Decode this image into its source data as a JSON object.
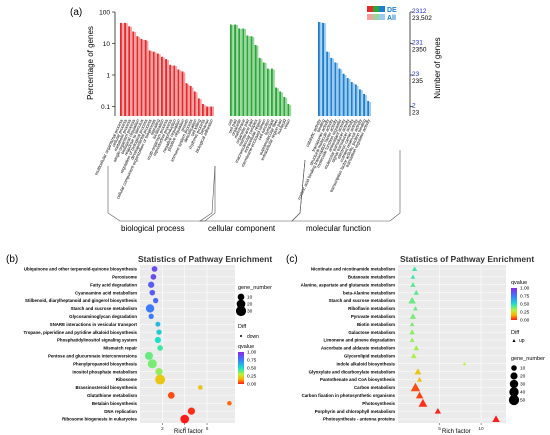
{
  "chart_data": [
    {
      "panel": "(a)",
      "type": "bar",
      "ylabel": "Percentage of genes",
      "ylabel2": "Number of genes",
      "yscale": "log",
      "yticks": [
        "100",
        "10",
        "1",
        "0.1"
      ],
      "ylim": [
        0.05,
        100
      ],
      "right_ticks": [
        {
          "value": "2312",
          "sub": "23,502"
        },
        {
          "value": "231",
          "sub": "2350"
        },
        {
          "value": "23",
          "sub": "235"
        },
        {
          "value": "2",
          "sub": "23"
        }
      ],
      "legend": [
        {
          "label": "DE",
          "colors": [
            "#e8292b",
            "#2aa837",
            "#1e7fd0"
          ]
        },
        {
          "label": "All",
          "colors": [
            "#f4a0a0",
            "#9ad59e",
            "#9ccbf0"
          ]
        }
      ],
      "group_labels": [
        "biological process",
        "cellular component",
        "molecular function"
      ],
      "groups": [
        {
          "name": "biological process",
          "de_color": "#e8292b",
          "all_color": "#f4a0a0",
          "categories": [
            "multicellular organismal process",
            "cellular process",
            "metabolic process",
            "single-organism process",
            "biological regulation",
            "response to stimulus",
            "regulation of biological process",
            "developmental process",
            "cellular component organization or biogenesis",
            "signaling",
            "localization",
            "multi-organism process",
            "reproductive process",
            "reproduction",
            "negative regulation",
            "positive regulation",
            "growth",
            "immune system process",
            "detoxification",
            "cell killing",
            "rhythmic process",
            "behavior",
            "biological adhesion"
          ],
          "values": [
            45,
            45,
            35,
            24,
            17,
            14,
            13,
            6,
            5.5,
            4.8,
            3.8,
            3.2,
            2.1,
            2.0,
            1.5,
            1.3,
            0.55,
            0.45,
            0.3,
            0.18,
            0.12,
            0.1,
            0.1
          ],
          "all_values": [
            44,
            44,
            34,
            23,
            16,
            13,
            12,
            5.8,
            5.2,
            4.6,
            3.6,
            3.0,
            2.0,
            1.9,
            1.4,
            1.2,
            0.5,
            0.4,
            0.28,
            0.17,
            0.11,
            0.1,
            0.1
          ]
        },
        {
          "name": "cellular component",
          "de_color": "#2aa837",
          "all_color": "#9ad59e",
          "categories": [
            "cell",
            "cell part",
            "organelle",
            "membrane",
            "organelle part",
            "membrane part",
            "macromolecular complex",
            "extracellular region",
            "membrane-enclosed lumen",
            "cell junction",
            "symplast",
            "supramolecular fiber",
            "extracellular region part",
            "nucleoid",
            "virion"
          ],
          "values": [
            40,
            40,
            30,
            30,
            18,
            17,
            9,
            3.5,
            2.5,
            1.6,
            1.6,
            0.4,
            0.3,
            0.2,
            0.12
          ],
          "all_values": [
            39,
            39,
            29,
            29,
            17,
            16,
            8.5,
            3.3,
            2.4,
            1.5,
            1.5,
            0.38,
            0.28,
            0.19,
            0.11
          ]
        },
        {
          "name": "molecular function",
          "de_color": "#1e7fd0",
          "all_color": "#9ccbf0",
          "categories": [
            "catalytic activity",
            "binding",
            "transporter activity",
            "structural molecule activity",
            "nucleic acid binding transcription factor activity",
            "molecular function regulator",
            "antioxidant activity",
            "molecular transducer activity",
            "signal transducer activity",
            "electron carrier activity",
            "nutrient reservoir activity",
            "transcription factor activity, protein binding",
            "translation regulator activity"
          ],
          "values": [
            48,
            45,
            5.5,
            3.5,
            2.5,
            1.6,
            1.1,
            0.8,
            0.6,
            0.5,
            0.35,
            0.25,
            0.15
          ],
          "all_values": [
            47,
            44,
            5.3,
            3.3,
            2.4,
            1.5,
            1.0,
            0.75,
            0.55,
            0.45,
            0.33,
            0.23,
            0.14
          ]
        }
      ]
    },
    {
      "panel": "(b)",
      "type": "scatter",
      "title": "Statistics of Pathway Enrichment",
      "xlabel": "Rich factor",
      "xlim": [
        0,
        8.5
      ],
      "xticks": [
        2,
        4,
        6
      ],
      "size_legend_title": "gene_number",
      "size_legend": [
        "10",
        "20",
        "30"
      ],
      "shape_legend_title": "Diff",
      "shape_legend": [
        "down"
      ],
      "color_legend_title": "qvalue",
      "color_ticks": [
        "1.00",
        "0.75",
        "0.50",
        "0.25",
        "0.00"
      ],
      "pathways": [
        "Ubiquinone and other terpenoid-quinone biosynthesis",
        "Peroxisome",
        "Fatty acid degradation",
        "Cyanoamino acid metabolism",
        "Stilbenoid, diarylheptanoid and gingerol biosynthesis",
        "Starch and sucrose metabolism",
        "Glycosaminoglycan degradation",
        "SNARE interactions in vesicular transport",
        "Tropane, piperidine and pyridine alkaloid biosynthesis",
        "Phosphatidylinositol signaling system",
        "Mismatch repair",
        "Pentose and glucuronate interconversions",
        "Phenylpropanoid biosynthesis",
        "Inositol phosphate metabolism",
        "Ribosome",
        "Brassinosteroid biosynthesis",
        "Glutathione metabolism",
        "Betalain biosynthesis",
        "DNA replication",
        "Ribosome biogenesis in eukaryotes"
      ],
      "x": [
        1.3,
        1.2,
        1.0,
        1.1,
        1.4,
        0.9,
        1.0,
        1.6,
        1.7,
        1.6,
        1.8,
        0.8,
        1.1,
        1.7,
        1.8,
        5.4,
        2.8,
        8.0,
        4.6,
        4.0
      ],
      "gene_number": [
        6,
        6,
        8,
        6,
        5,
        18,
        5,
        4,
        5,
        8,
        6,
        16,
        22,
        12,
        28,
        3,
        10,
        3,
        12,
        20
      ],
      "qvalue": [
        0.9,
        0.9,
        0.85,
        0.85,
        0.8,
        0.75,
        0.75,
        0.6,
        0.55,
        0.5,
        0.45,
        0.4,
        0.38,
        0.35,
        0.2,
        0.2,
        0.05,
        0.08,
        0.02,
        0.0
      ]
    },
    {
      "panel": "(c)",
      "type": "scatter",
      "title": "Statistics of Pathway Enrichment",
      "xlabel": "Rich factor",
      "xlim": [
        0,
        13
      ],
      "xticks": [
        5,
        10
      ],
      "color_legend_title": "qvalue",
      "color_ticks": [
        "1.00",
        "0.75",
        "0.50",
        "0.25",
        "0.00"
      ],
      "shape_legend_title": "Diff",
      "shape_legend": [
        "up"
      ],
      "size_legend_title": "gene_number",
      "size_legend": [
        "10",
        "20",
        "30",
        "40",
        "50"
      ],
      "pathways": [
        "Nicotinate and nicotinamide metabolism",
        "Butanoate metabolism",
        "Alanine, aspartate and glutamate metabolism",
        "beta-Alanine metabolism",
        "Starch and sucrose metabolism",
        "Riboflavin metabolism",
        "Pyruvate metabolism",
        "Biotin metabolism",
        "Galactose metabolism",
        "Limonene and pinene degradation",
        "Ascorbate and aldarate metabolism",
        "Glycerolipid metabolism",
        "Indole alkaloid biosynthesis",
        "Glyoxylate and dicarboxylate metabolism",
        "Pantothenate and CoA biosynthesis",
        "Carbon metabolism",
        "Carbon fixation in photosynthetic organisms",
        "Photosynthesis",
        "Porphyrin and chlorophyll metabolism",
        "Photosynthesis - antenna proteins"
      ],
      "x": [
        2.0,
        1.8,
        1.8,
        2.2,
        1.7,
        2.1,
        1.8,
        1.7,
        1.7,
        1.7,
        2.2,
        1.9,
        8.0,
        2.4,
        2.6,
        2.1,
        2.6,
        3.0,
        4.8,
        11.8
      ],
      "gene_number": [
        8,
        6,
        8,
        8,
        22,
        6,
        14,
        6,
        10,
        6,
        10,
        10,
        2,
        18,
        8,
        40,
        22,
        34,
        14,
        22
      ],
      "qvalue": [
        0.45,
        0.45,
        0.42,
        0.42,
        0.4,
        0.4,
        0.38,
        0.38,
        0.36,
        0.35,
        0.33,
        0.32,
        0.3,
        0.2,
        0.18,
        0.05,
        0.04,
        0.02,
        0.01,
        0.0
      ]
    }
  ]
}
